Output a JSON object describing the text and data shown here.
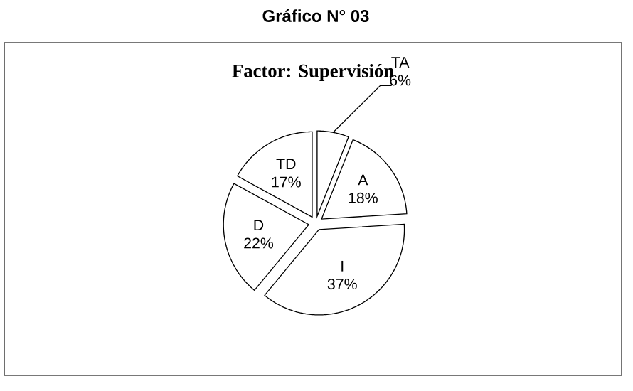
{
  "chart_data": {
    "type": "pie",
    "title": "Gráfico N° 03",
    "subtitle": "Factor: Supervisión",
    "categories": [
      "TA",
      "A",
      "I",
      "D",
      "TD"
    ],
    "values": [
      6,
      18,
      37,
      22,
      17
    ],
    "value_labels": [
      "6%",
      "18%",
      "37%",
      "22%",
      "17%"
    ],
    "colors": [
      "#ffffff",
      "#ffffff",
      "#ffffff",
      "#ffffff",
      "#ffffff"
    ]
  }
}
